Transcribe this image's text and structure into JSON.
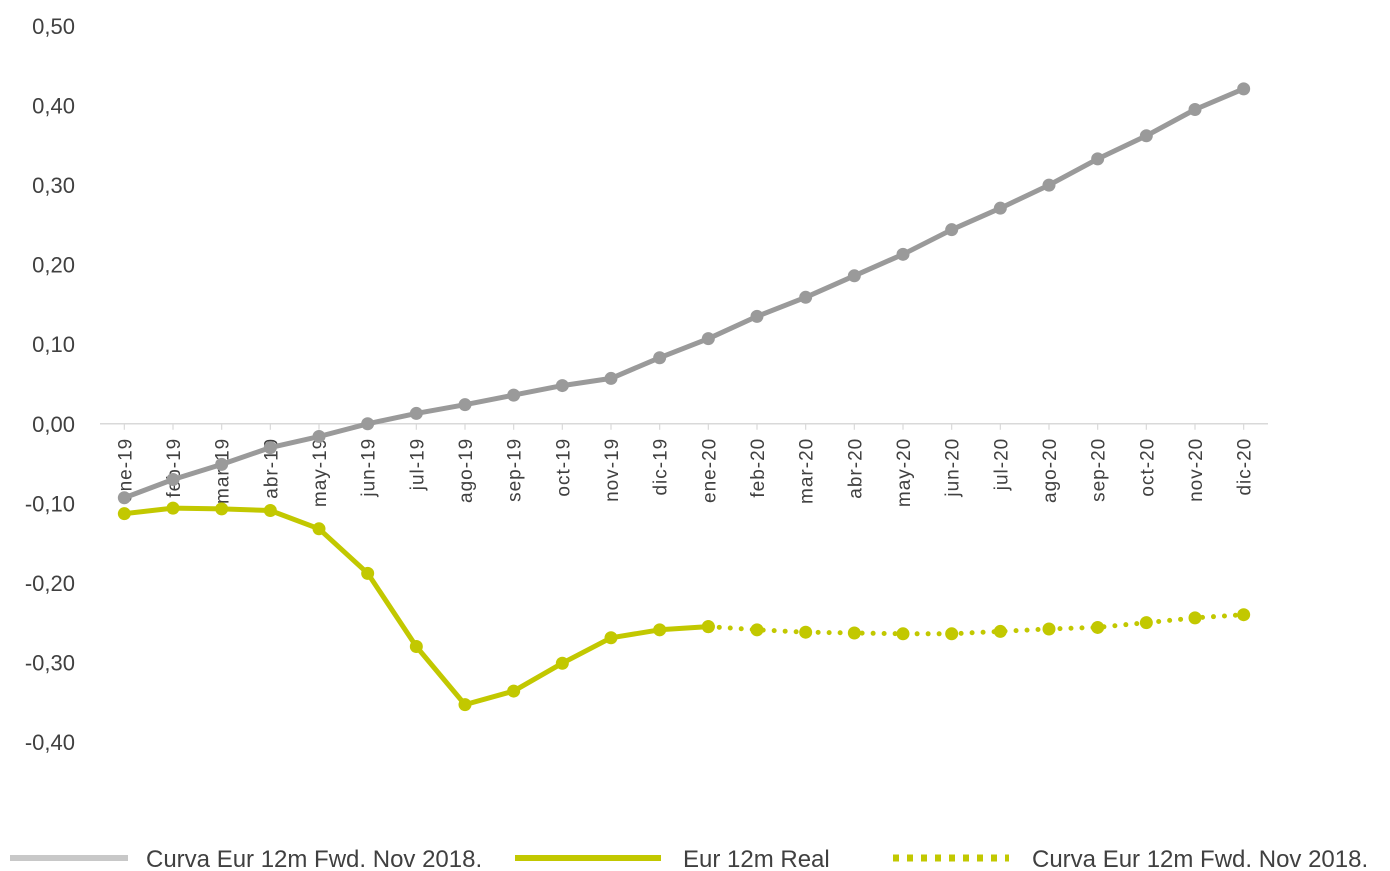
{
  "chart_data": {
    "type": "line",
    "categories": [
      "ene-19",
      "feb-19",
      "mar-19",
      "abr-19",
      "may-19",
      "jun-19",
      "jul-19",
      "ago-19",
      "sep-19",
      "oct-19",
      "nov-19",
      "dic-19",
      "ene-20",
      "feb-20",
      "mar-20",
      "abr-20",
      "may-20",
      "jun-20",
      "jul-20",
      "ago-20",
      "sep-20",
      "oct-20",
      "nov-20",
      "dic-20"
    ],
    "y_ticks": [
      "0,50",
      "0,40",
      "0,30",
      "0,20",
      "0,10",
      "0,00",
      "-0,10",
      "-0,20",
      "-0,30",
      "-0,40"
    ],
    "ylim": [
      -0.4,
      0.5
    ],
    "grid": false,
    "legend_position": "bottom",
    "series": [
      {
        "name": "Curva Eur 12m Fwd. Nov 2018.",
        "color": "#9a9a9a",
        "style": "solid",
        "x": [
          "ene-19",
          "feb-19",
          "mar-19",
          "abr-19",
          "may-19",
          "jun-19",
          "jul-19",
          "ago-19",
          "sep-19",
          "oct-19",
          "nov-19",
          "dic-19",
          "ene-20",
          "feb-20",
          "mar-20",
          "abr-20",
          "may-20",
          "jun-20",
          "jul-20",
          "ago-20",
          "sep-20",
          "oct-20",
          "nov-20",
          "dic-20"
        ],
        "values": [
          -0.093,
          -0.07,
          -0.051,
          -0.03,
          -0.016,
          0.0,
          0.013,
          0.024,
          0.036,
          0.048,
          0.057,
          0.083,
          0.107,
          0.135,
          0.159,
          0.186,
          0.213,
          0.244,
          0.271,
          0.3,
          0.333,
          0.362,
          0.395,
          0.421
        ]
      },
      {
        "name": "Eur 12m Real",
        "color": "#c2c800",
        "style": "solid",
        "x": [
          "ene-19",
          "feb-19",
          "mar-19",
          "abr-19",
          "may-19",
          "jun-19",
          "jul-19",
          "ago-19",
          "sep-19",
          "oct-19",
          "nov-19",
          "dic-19",
          "ene-20"
        ],
        "values": [
          -0.113,
          -0.106,
          -0.107,
          -0.109,
          -0.132,
          -0.188,
          -0.28,
          -0.353,
          -0.336,
          -0.301,
          -0.269,
          -0.259,
          -0.255
        ]
      },
      {
        "name": "Curva Eur 12m Fwd. Nov 2018.",
        "color": "#c2c800",
        "style": "dotted",
        "x": [
          "ene-20",
          "feb-20",
          "mar-20",
          "abr-20",
          "may-20",
          "jun-20",
          "jul-20",
          "ago-20",
          "sep-20",
          "oct-20",
          "nov-20",
          "dic-20"
        ],
        "values": [
          -0.255,
          -0.259,
          -0.262,
          -0.263,
          -0.264,
          -0.264,
          -0.261,
          -0.258,
          -0.256,
          -0.25,
          -0.244,
          -0.24
        ]
      }
    ]
  }
}
